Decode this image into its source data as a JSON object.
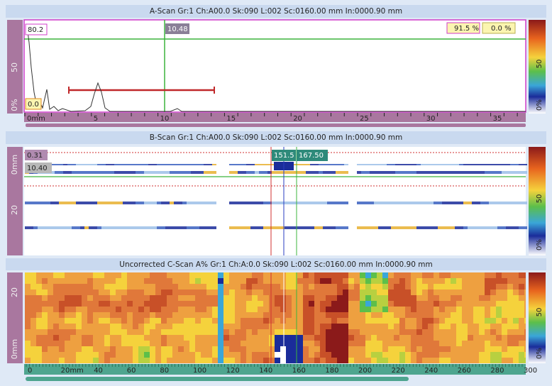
{
  "a_scan": {
    "title": "A-Scan Gr:1 Ch:A00.0 Sk:090 L:002 Sc:0160.00 mm In:0000.90 mm",
    "left_ruler": [
      "50",
      "0%"
    ],
    "readouts": {
      "amplitude": "80.2",
      "cursor": "10.48",
      "gate_a": "91.5 %",
      "gate_b": "0.0 %",
      "baseline": "0.0"
    },
    "x_ruler": [
      "0mm",
      "5",
      "10",
      "15",
      "20",
      "25",
      "30",
      "35"
    ],
    "color_scale": [
      "50",
      "0%"
    ]
  },
  "b_scan": {
    "title": "B-Scan Gr:1 Ch:A00.0 Sk:090 L:002 Sc:0160.00 mm In:0000.90 mm",
    "left_ruler": [
      "0mm",
      "20"
    ],
    "readouts": {
      "top": "0.31",
      "depth": "10.40",
      "cursor_ref": "151.5",
      "cursor_meas": "167.50"
    },
    "color_scale": [
      "50",
      "0%"
    ]
  },
  "c_scan": {
    "title": "Uncorrected C-Scan A% Gr:1 Ch:A:0.0 Sk:090 L:002 Sc:0160.00 mm In:0000.90 mm",
    "left_ruler": [
      "20",
      "0mm"
    ],
    "x_ruler": [
      "0",
      "20mm",
      "40",
      "60",
      "80",
      "100",
      "120",
      "140",
      "160",
      "180",
      "200",
      "220",
      "240",
      "260",
      "280",
      "300"
    ],
    "color_scale": [
      "50",
      "0%"
    ]
  }
}
